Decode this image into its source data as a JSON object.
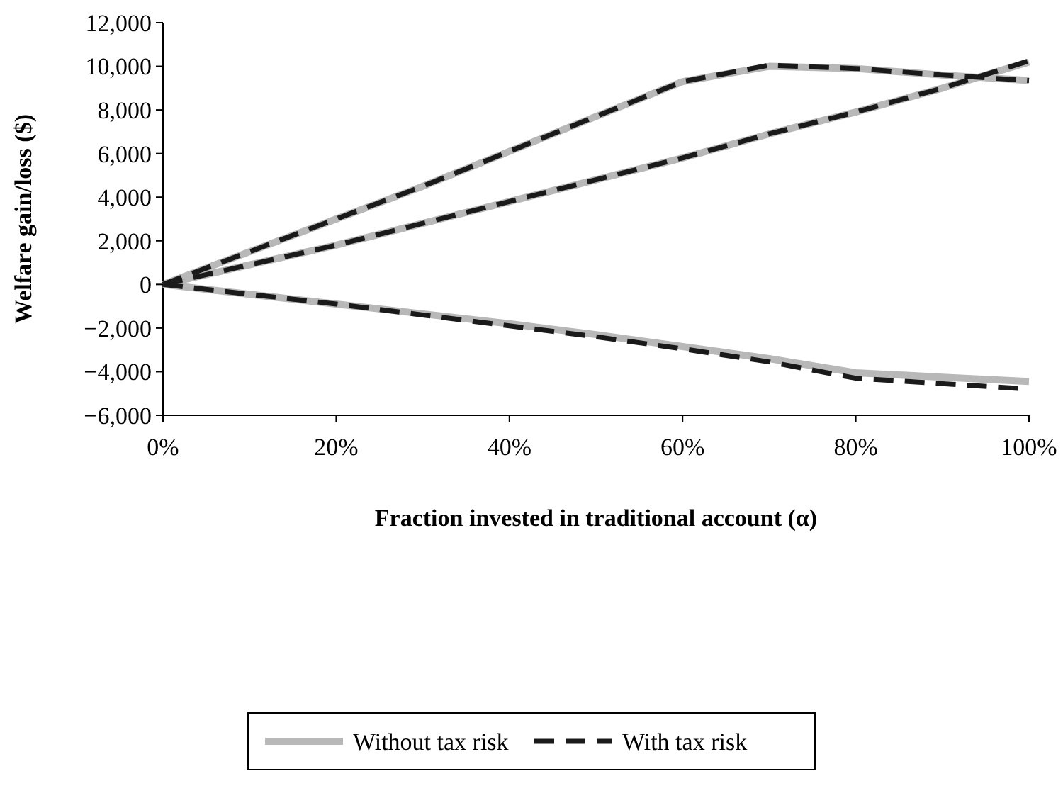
{
  "chart_data": {
    "type": "line",
    "xlabel": "Fraction invested in traditional account (α)",
    "ylabel": "Welfare gain/loss ($)",
    "x": [
      0,
      10,
      20,
      30,
      40,
      50,
      60,
      70,
      80,
      90,
      100
    ],
    "xlim": [
      0,
      100
    ],
    "xticks": [
      {
        "value": 0,
        "label": "0%"
      },
      {
        "value": 20,
        "label": "20%"
      },
      {
        "value": 40,
        "label": "40%"
      },
      {
        "value": 60,
        "label": "60%"
      },
      {
        "value": 80,
        "label": "80%"
      },
      {
        "value": 100,
        "label": "100%"
      }
    ],
    "ylim": [
      -6000,
      12000
    ],
    "yticks": [
      {
        "value": -6000,
        "label": "−6,000"
      },
      {
        "value": -4000,
        "label": "−4,000"
      },
      {
        "value": -2000,
        "label": "−2,000"
      },
      {
        "value": 0,
        "label": "0"
      },
      {
        "value": 2000,
        "label": "2,000"
      },
      {
        "value": 4000,
        "label": "4,000"
      },
      {
        "value": 6000,
        "label": "6,000"
      },
      {
        "value": 8000,
        "label": "8,000"
      },
      {
        "value": 10000,
        "label": "10,000"
      },
      {
        "value": 12000,
        "label": "12,000"
      }
    ],
    "grid": false,
    "legend": "bottom",
    "series": [
      {
        "name": "Without tax risk",
        "color": "#b8b8b8",
        "line_style": "solid",
        "values": [
          0,
          1500,
          3000,
          4500,
          6100,
          7700,
          9300,
          10000,
          9900,
          9600,
          9350
        ]
      },
      {
        "color": "#b8b8b8",
        "line_style": "solid",
        "values": [
          0,
          900,
          1800,
          2800,
          3800,
          4800,
          5800,
          6900,
          7900,
          9000,
          10200
        ]
      },
      {
        "color": "#b8b8b8",
        "line_style": "solid",
        "values": [
          0,
          -450,
          -900,
          -1350,
          -1800,
          -2300,
          -2850,
          -3400,
          -4050,
          -4250,
          -4450
        ]
      },
      {
        "name": "With tax risk",
        "color": "#1a1a1a",
        "line_style": "dashed",
        "values": [
          0,
          1500,
          3000,
          4500,
          6100,
          7700,
          9300,
          10050,
          9900,
          9600,
          9350
        ]
      },
      {
        "color": "#1a1a1a",
        "line_style": "dashed",
        "values": [
          0,
          900,
          1800,
          2800,
          3800,
          4800,
          5800,
          6900,
          7900,
          9000,
          10250
        ]
      },
      {
        "color": "#1a1a1a",
        "line_style": "dashed",
        "values": [
          0,
          -450,
          -900,
          -1400,
          -1900,
          -2400,
          -2950,
          -3550,
          -4300,
          -4550,
          -4800
        ]
      }
    ]
  }
}
